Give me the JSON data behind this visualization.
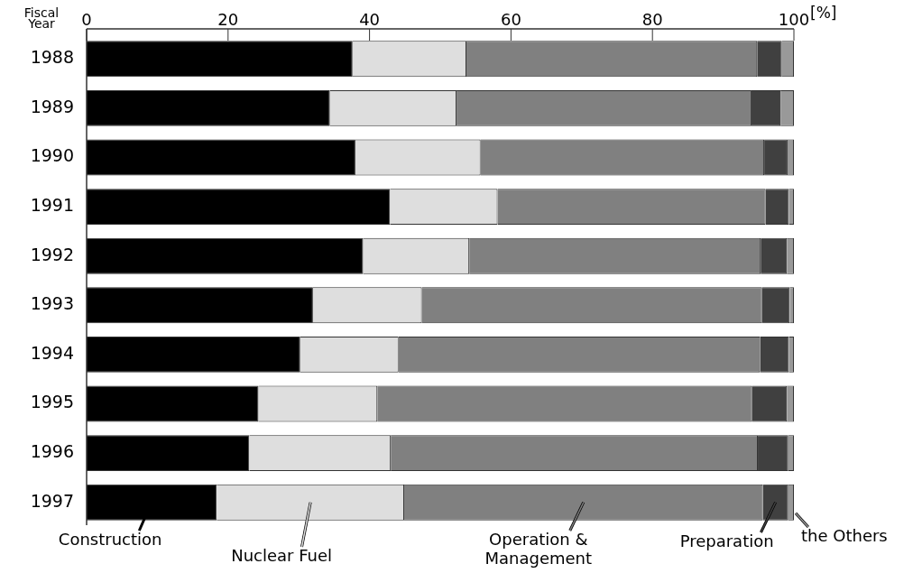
{
  "chart_data": {
    "type": "bar",
    "orientation": "horizontal",
    "stacked": true,
    "xlabel": "[%]",
    "ylabel": "Fiscal Year",
    "categories": [
      "1988",
      "1989",
      "1990",
      "1991",
      "1992",
      "1993",
      "1994",
      "1995",
      "1996",
      "1997"
    ],
    "series": [
      {
        "name": "Construction",
        "color": "#000000",
        "values": [
          37.6,
          34.4,
          38.0,
          42.9,
          39.1,
          32.0,
          30.2,
          24.3,
          23.0,
          18.4
        ]
      },
      {
        "name": "Nuclear Fuel",
        "color": "#dedede",
        "values": [
          16.1,
          17.9,
          17.7,
          15.2,
          15.0,
          15.4,
          13.9,
          16.8,
          20.0,
          26.5
        ]
      },
      {
        "name": "Operation & Management",
        "color": "#808080",
        "values": [
          41.1,
          41.7,
          40.1,
          37.9,
          41.2,
          48.1,
          51.1,
          53.0,
          51.9,
          50.7
        ]
      },
      {
        "name": "Preparation",
        "color": "#404040",
        "values": [
          3.5,
          4.1,
          3.3,
          3.3,
          3.7,
          3.9,
          4.1,
          4.9,
          4.3,
          3.6
        ]
      },
      {
        "name": "the Others",
        "color": "#999999",
        "values": [
          1.7,
          1.9,
          0.9,
          0.7,
          1.0,
          0.6,
          0.7,
          1.0,
          0.8,
          0.8
        ]
      }
    ],
    "xlim": [
      0,
      100
    ],
    "xticks": [
      0,
      20,
      40,
      60,
      80,
      100
    ],
    "grid": false,
    "legend": "bottom"
  }
}
